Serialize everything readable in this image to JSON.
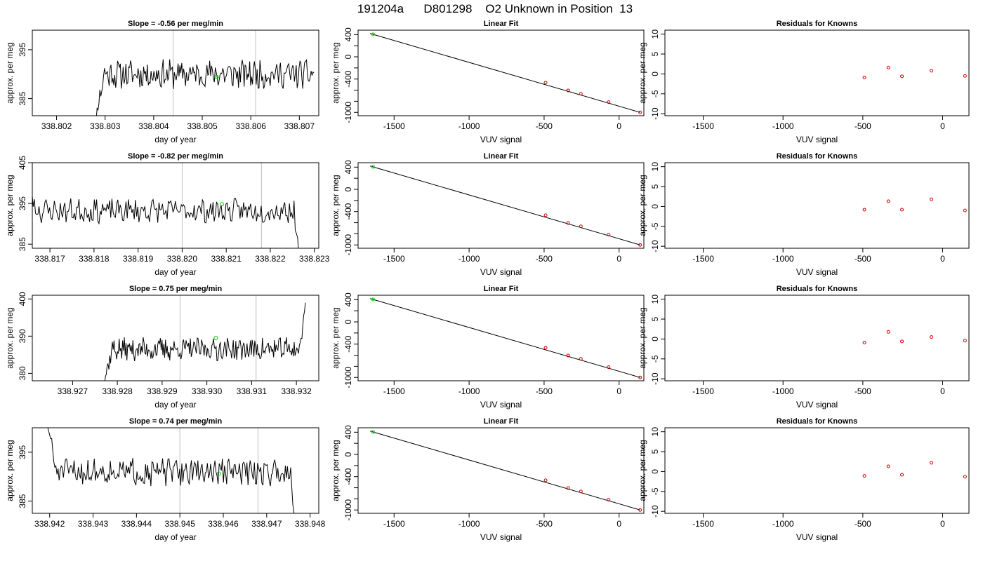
{
  "figure": {
    "title": "191204a      D801298    O2 Unknown in Position  13"
  },
  "chart_data": [
    {
      "type": "line",
      "panel": "time-series-1",
      "title": "Slope =  -0.56  per meg/min",
      "xlabel": "day of year",
      "ylabel": "approx. per meg",
      "xlim": [
        338.8015,
        338.8074
      ],
      "ylim": [
        381.5,
        399
      ],
      "x_ticks": [
        "338.802",
        "338.803",
        "338.804",
        "338.805",
        "338.806",
        "338.807"
      ],
      "y_ticks": [
        "385",
        "395"
      ],
      "x_start": 338.8027,
      "x_end": 338.8073,
      "baseline": 390,
      "trend_per_day": 1.0,
      "noise_amp": 2.6,
      "seed": 11,
      "start_shape": "rise-from-below",
      "end_shape": "flat",
      "vlines": [
        338.8044,
        338.8061
      ],
      "marker": {
        "x": 338.8053,
        "y": 389.4
      }
    },
    {
      "type": "line",
      "panel": "time-series-2",
      "title": "Slope =  -0.82  per meg/min",
      "xlabel": "day of year",
      "ylabel": "approx. per meg",
      "xlim": [
        338.8166,
        338.8231
      ],
      "ylim": [
        384,
        405
      ],
      "x_ticks": [
        "338.817",
        "338.818",
        "338.819",
        "338.820",
        "338.821",
        "338.822",
        "338.823"
      ],
      "y_ticks": [
        "385",
        "395",
        "405"
      ],
      "x_start": 338.8163,
      "x_end": 338.8227,
      "baseline": 393.2,
      "trend_per_day": 0.4,
      "noise_amp": 2.6,
      "seed": 23,
      "start_shape": "fall-from-above",
      "end_shape": "drop",
      "vlines": [
        338.82,
        338.8218
      ],
      "marker": {
        "x": 338.8209,
        "y": 394.8
      }
    },
    {
      "type": "line",
      "panel": "time-series-3",
      "title": "Slope =  0.75  per meg/min",
      "xlabel": "day of year",
      "ylabel": "approx. per meg",
      "xlim": [
        338.9261,
        338.9325
      ],
      "ylim": [
        378,
        401
      ],
      "x_ticks": [
        "338.927",
        "338.928",
        "338.929",
        "338.930",
        "338.931",
        "338.932"
      ],
      "y_ticks": [
        "380",
        "390",
        "400"
      ],
      "x_start": 338.9276,
      "x_end": 338.9322,
      "baseline": 386.5,
      "trend_per_day": 1.4,
      "noise_amp": 2.8,
      "seed": 37,
      "start_shape": "rise-from-below",
      "end_shape": "rise",
      "vlines": [
        338.9294,
        338.9311
      ],
      "marker": {
        "x": 338.9302,
        "y": 389.5
      }
    },
    {
      "type": "line",
      "panel": "time-series-4",
      "title": "Slope =  0.74  per meg/min",
      "xlabel": "day of year",
      "ylabel": "approx. per meg",
      "xlim": [
        338.9416,
        338.9482
      ],
      "ylim": [
        382.5,
        400
      ],
      "x_ticks": [
        "338.942",
        "338.943",
        "338.944",
        "338.945",
        "338.946",
        "338.947",
        "338.948"
      ],
      "y_ticks": [
        "385",
        "395"
      ],
      "x_start": 338.9418,
      "x_end": 338.9477,
      "baseline": 391.0,
      "trend_per_day": 0.2,
      "noise_amp": 2.4,
      "seed": 51,
      "start_shape": "fall-from-above",
      "end_shape": "drop",
      "vlines": [
        338.945,
        338.9468
      ],
      "marker": {
        "x": 338.9459,
        "y": 390.6
      }
    },
    {
      "type": "scatter",
      "panel": "linear-fit",
      "title": "Linear Fit",
      "xlabel": "VUV signal",
      "ylabel": "approx. per meg",
      "xlim": [
        -1740,
        165
      ],
      "ylim": [
        -1060,
        480
      ],
      "x_ticks": [
        "-1500",
        "-1000",
        "-500",
        "0"
      ],
      "y_ticks": [
        "-1000",
        "-800",
        "-600",
        "-400",
        "-200",
        "0",
        "200",
        "400"
      ],
      "y_tick_labels_printed": [
        "-1000",
        "-400",
        "0",
        "400"
      ],
      "fit_line": {
        "x": [
          -1660,
          140
        ],
        "y": [
          420,
          -1000
        ]
      },
      "knowns": {
        "x": [
          -490,
          -340,
          -255,
          -70,
          140
        ],
        "y": [
          -465,
          -605,
          -665,
          -815,
          -1000
        ]
      },
      "unknown": {
        "x": -1640,
        "y": 405
      }
    },
    {
      "type": "scatter",
      "panel": "residuals",
      "title": "Residuals for Knowns",
      "xlabel": "VUV signal",
      "ylabel": "approx. per meg",
      "xlim": [
        -1740,
        165
      ],
      "ylim": [
        -10.5,
        11
      ],
      "x_ticks": [
        "-1500",
        "-1000",
        "-500",
        "0"
      ],
      "y_ticks": [
        "-10",
        "-5",
        "0",
        "5",
        "10"
      ],
      "x": [
        -490,
        -340,
        -255,
        -70,
        140
      ],
      "series": [
        {
          "row": 1,
          "values": [
            -0.9,
            1.6,
            -0.6,
            0.8,
            -0.5
          ]
        },
        {
          "row": 2,
          "values": [
            -0.8,
            1.3,
            -0.8,
            1.8,
            -1.0
          ]
        },
        {
          "row": 3,
          "values": [
            -0.9,
            1.8,
            -0.6,
            0.5,
            -0.4
          ]
        },
        {
          "row": 4,
          "values": [
            -1.1,
            1.3,
            -0.8,
            2.2,
            -1.3
          ]
        }
      ]
    }
  ],
  "colors": {
    "line": "#000000",
    "vline": "#bfbfbf",
    "unknown_marker": "#00cc00",
    "known_marker": "#cc0000"
  }
}
